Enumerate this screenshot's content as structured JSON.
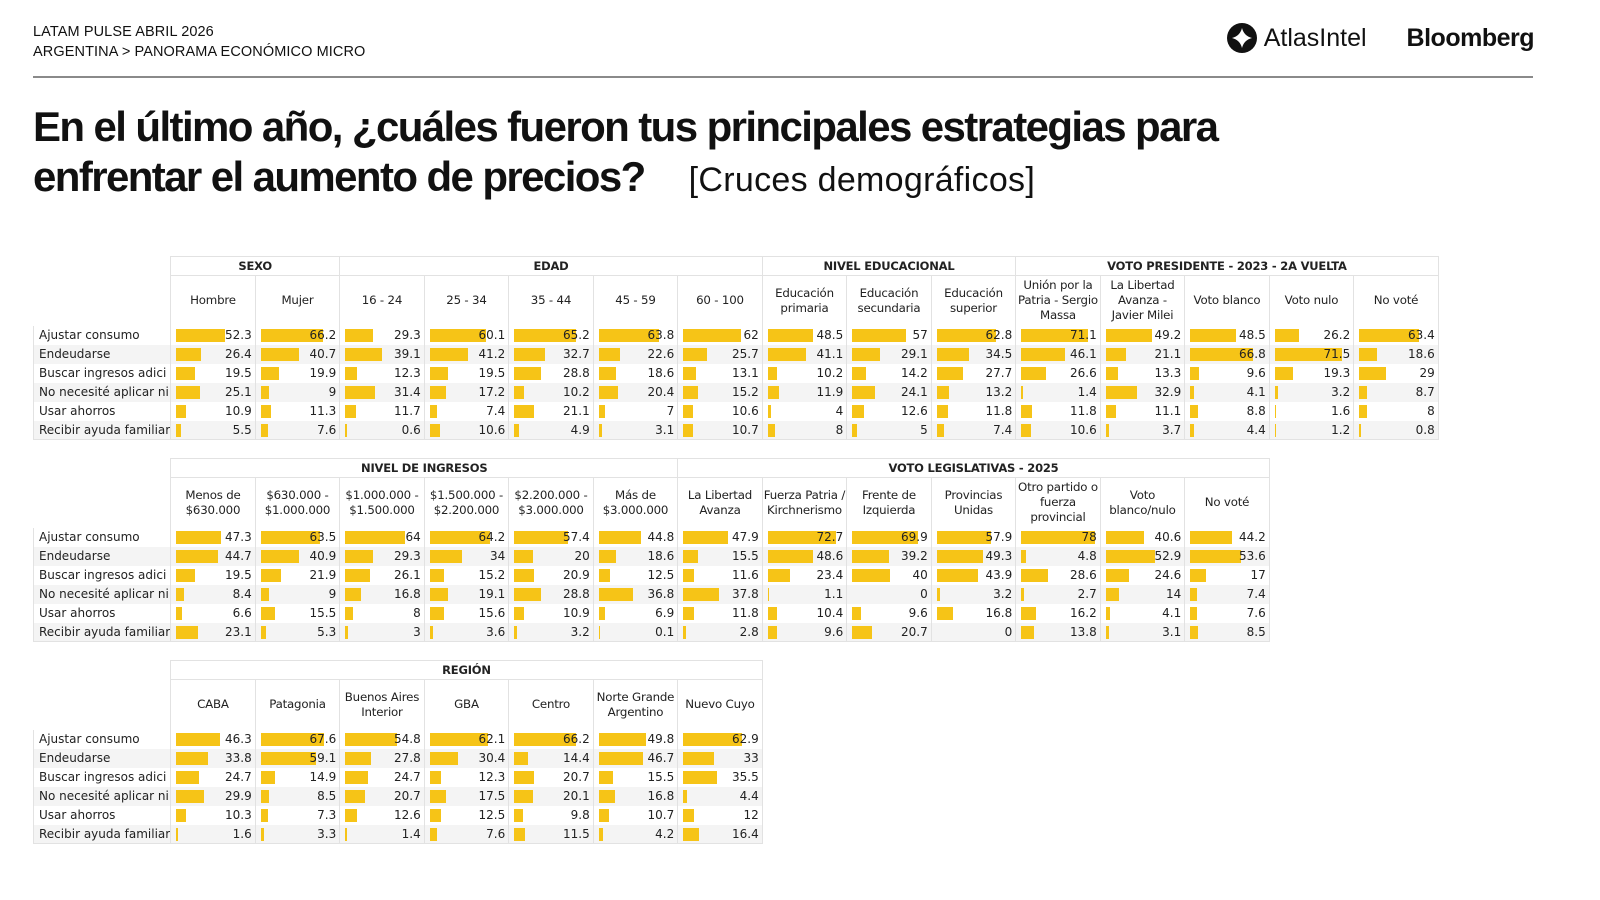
{
  "header": {
    "line1": "LATAM PULSE ABRIL 2026",
    "line2": "ARGENTINA > PANORAMA ECONÓMICO MICRO",
    "logo_atlas": "AtlasIntel",
    "logo_bloomberg": "Bloomberg",
    "atlas_icon": "atlas-diamond-icon"
  },
  "title": {
    "main_line1": "En el último año, ¿cuáles fueron tus principales estrategias para",
    "main_line2": "enfrentar el aumento de precios?",
    "subtitle": "[Cruces demográficos]"
  },
  "colors": {
    "bar": "#f6c417",
    "grid": "#e2e2e2",
    "stripe": "#f4f4f4"
  },
  "chart_data": {
    "type": "table",
    "title": "En el último año, ¿cuáles fueron tus principales estrategias para enfrentar el aumento de precios?",
    "bar_scale_max": 75,
    "row_labels": [
      "Ajustar consumo",
      "Endeudarse",
      "Buscar ingresos adici",
      "No necesité aplicar ni",
      "Usar ahorros",
      "Recibir ayuda familiar"
    ],
    "tables": [
      {
        "groups": [
          {
            "name": "SEXO",
            "columns": [
              {
                "label": "Hombre",
                "values": [
                  52.3,
                  26.4,
                  19.5,
                  25.1,
                  10.9,
                  5.5
                ]
              },
              {
                "label": "Mujer",
                "values": [
                  66.2,
                  40.7,
                  19.9,
                  9,
                  11.3,
                  7.6
                ]
              }
            ]
          },
          {
            "name": "EDAD",
            "columns": [
              {
                "label": "16 - 24",
                "values": [
                  29.3,
                  39.1,
                  12.3,
                  31.4,
                  11.7,
                  0.6
                ]
              },
              {
                "label": "25 - 34",
                "values": [
                  60.1,
                  41.2,
                  19.5,
                  17.2,
                  7.4,
                  10.6
                ]
              },
              {
                "label": "35 - 44",
                "values": [
                  65.2,
                  32.7,
                  28.8,
                  10.2,
                  21.1,
                  4.9
                ]
              },
              {
                "label": "45 - 59",
                "values": [
                  63.8,
                  22.6,
                  18.6,
                  20.4,
                  7,
                  3.1
                ]
              },
              {
                "label": "60 - 100",
                "values": [
                  62,
                  25.7,
                  13.1,
                  15.2,
                  10.6,
                  10.7
                ]
              }
            ]
          },
          {
            "name": "NIVEL EDUCACIONAL",
            "columns": [
              {
                "label": "Educación primaria",
                "values": [
                  48.5,
                  41.1,
                  10.2,
                  11.9,
                  4,
                  8
                ]
              },
              {
                "label": "Educación secundaria",
                "values": [
                  57,
                  29.1,
                  14.2,
                  24.1,
                  12.6,
                  5
                ]
              },
              {
                "label": "Educación superior",
                "values": [
                  62.8,
                  34.5,
                  27.7,
                  13.2,
                  11.8,
                  7.4
                ]
              }
            ]
          },
          {
            "name": "VOTO PRESIDENTE - 2023 - 2A VUELTA",
            "columns": [
              {
                "label": "Unión por la Patria - Sergio Massa",
                "values": [
                  71.1,
                  46.1,
                  26.6,
                  1.4,
                  11.8,
                  10.6
                ]
              },
              {
                "label": "La Libertad Avanza - Javier Milei",
                "values": [
                  49.2,
                  21.1,
                  13.3,
                  32.9,
                  11.1,
                  3.7
                ]
              },
              {
                "label": "Voto blanco",
                "values": [
                  48.5,
                  66.8,
                  9.6,
                  4.1,
                  8.8,
                  4.4
                ]
              },
              {
                "label": "Voto nulo",
                "values": [
                  26.2,
                  71.5,
                  19.3,
                  3.2,
                  1.6,
                  1.2
                ]
              },
              {
                "label": "No voté",
                "values": [
                  63.4,
                  18.6,
                  29,
                  8.7,
                  8,
                  0.8
                ]
              }
            ]
          }
        ]
      },
      {
        "groups": [
          {
            "name": "NIVEL DE INGRESOS",
            "columns": [
              {
                "label": "Menos de $630.000",
                "values": [
                  47.3,
                  44.7,
                  19.5,
                  8.4,
                  6.6,
                  23.1
                ]
              },
              {
                "label": "$630.000 - $1.000.000",
                "values": [
                  63.5,
                  40.9,
                  21.9,
                  9,
                  15.5,
                  5.3
                ]
              },
              {
                "label": "$1.000.000 - $1.500.000",
                "values": [
                  64,
                  29.3,
                  26.1,
                  16.8,
                  8,
                  3
                ]
              },
              {
                "label": "$1.500.000 - $2.200.000",
                "values": [
                  64.2,
                  34,
                  15.2,
                  19.1,
                  15.6,
                  3.6
                ]
              },
              {
                "label": "$2.200.000 - $3.000.000",
                "values": [
                  57.4,
                  20,
                  20.9,
                  28.8,
                  10.9,
                  3.2
                ]
              },
              {
                "label": "Más de $3.000.000",
                "values": [
                  44.8,
                  18.6,
                  12.5,
                  36.8,
                  6.9,
                  0.1
                ]
              }
            ]
          },
          {
            "name": "VOTO LEGISLATIVAS - 2025",
            "columns": [
              {
                "label": "La Libertad Avanza",
                "values": [
                  47.9,
                  15.5,
                  11.6,
                  37.8,
                  11.8,
                  2.8
                ]
              },
              {
                "label": "Fuerza Patria / Kirchnerismo",
                "values": [
                  72.7,
                  48.6,
                  23.4,
                  1.1,
                  10.4,
                  9.6
                ]
              },
              {
                "label": "Frente de Izquierda",
                "values": [
                  69.9,
                  39.2,
                  40,
                  0,
                  9.6,
                  20.7
                ]
              },
              {
                "label": "Provincias Unidas",
                "values": [
                  57.9,
                  49.3,
                  43.9,
                  3.2,
                  16.8,
                  0
                ]
              },
              {
                "label": "Otro partido o fuerza provincial",
                "values": [
                  78,
                  4.8,
                  28.6,
                  2.7,
                  16.2,
                  13.8
                ]
              },
              {
                "label": "Voto blanco/nulo",
                "values": [
                  40.6,
                  52.9,
                  24.6,
                  14,
                  4.1,
                  3.1
                ]
              },
              {
                "label": "No voté",
                "values": [
                  44.2,
                  53.6,
                  17,
                  7.4,
                  7.6,
                  8.5
                ]
              }
            ]
          }
        ]
      },
      {
        "groups": [
          {
            "name": "REGIÓN",
            "columns": [
              {
                "label": "CABA",
                "values": [
                  46.3,
                  33.8,
                  24.7,
                  29.9,
                  10.3,
                  1.6
                ]
              },
              {
                "label": "Patagonia",
                "values": [
                  67.6,
                  59.1,
                  14.9,
                  8.5,
                  7.3,
                  3.3
                ]
              },
              {
                "label": "Buenos Aires Interior",
                "values": [
                  54.8,
                  27.8,
                  24.7,
                  20.7,
                  12.6,
                  1.4
                ]
              },
              {
                "label": "GBA",
                "values": [
                  62.1,
                  30.4,
                  12.3,
                  17.5,
                  12.5,
                  7.6
                ]
              },
              {
                "label": "Centro",
                "values": [
                  66.2,
                  14.4,
                  20.7,
                  20.1,
                  9.8,
                  11.5
                ]
              },
              {
                "label": "Norte Grande Argentino",
                "values": [
                  49.8,
                  46.7,
                  15.5,
                  16.8,
                  10.7,
                  4.2
                ]
              },
              {
                "label": "Nuevo Cuyo",
                "values": [
                  62.9,
                  33,
                  35.5,
                  4.4,
                  12,
                  16.4
                ]
              }
            ]
          }
        ]
      }
    ]
  }
}
